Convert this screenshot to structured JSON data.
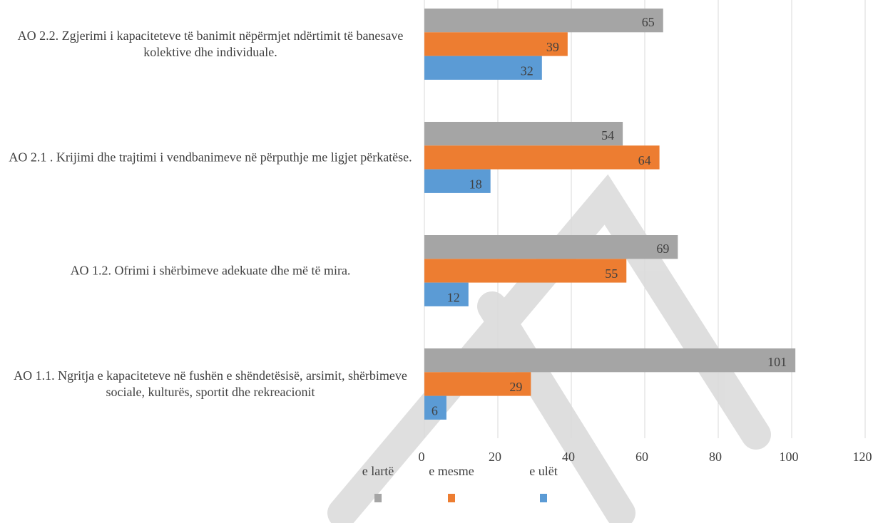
{
  "chart_data": {
    "type": "bar",
    "orientation": "horizontal",
    "categories": [
      "AO 2.2. Zgjerimi i kapaciteteve të banimit nëpërmjet ndërtimit të banesave kolektive dhe individuale.",
      "AO 2.1 . Krijimi dhe trajtimi i vendbanimeve në përputhje me ligjet përkatëse.",
      "AO 1.2. Ofrimi i shërbimeve adekuate dhe më të mira.",
      "AO 1.1. Ngritja e kapaciteteve në fushën e shëndetësisë, arsimit, shërbimeve sociale, kulturës, sportit dhe rekreacionit"
    ],
    "series": [
      {
        "name": "e lartë",
        "color": "#a5a5a5",
        "values": [
          65,
          54,
          69,
          101
        ]
      },
      {
        "name": "e mesme",
        "color": "#ed7d31",
        "values": [
          39,
          64,
          55,
          29
        ]
      },
      {
        "name": "e ulët",
        "color": "#5b9bd5",
        "values": [
          32,
          18,
          12,
          6
        ]
      }
    ],
    "xlim": [
      0,
      120
    ],
    "xticks": [
      0,
      20,
      40,
      60,
      80,
      100,
      120
    ],
    "grid": true,
    "legend": "bottom"
  }
}
